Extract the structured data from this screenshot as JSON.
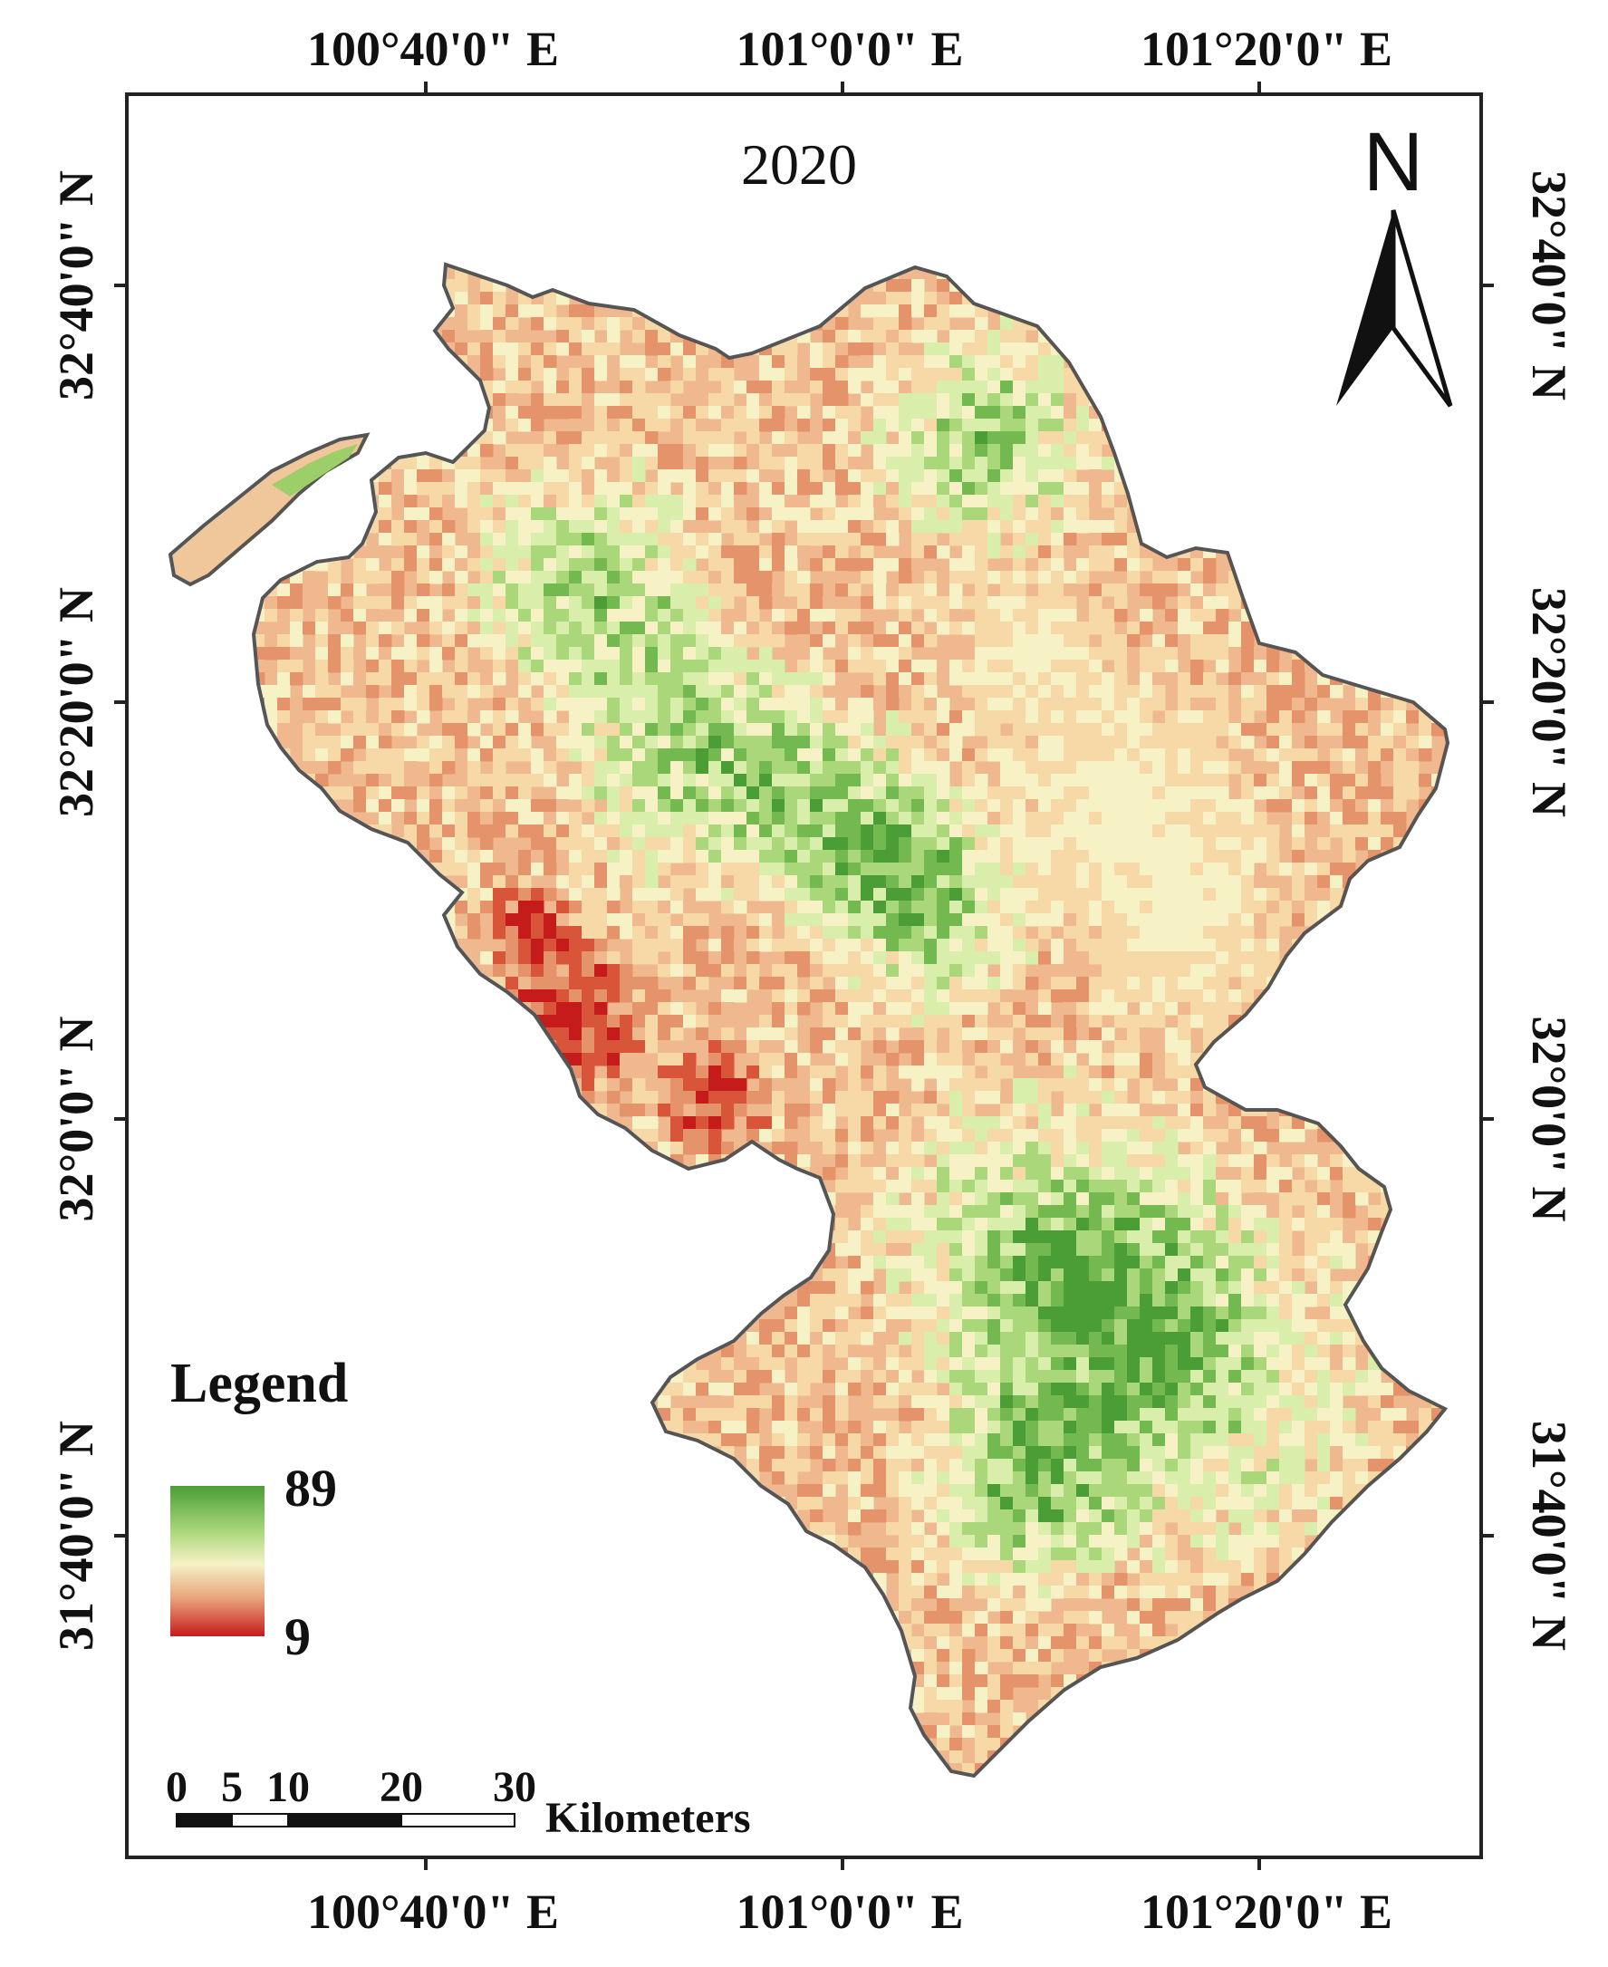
{
  "map": {
    "title": "2020",
    "longitude_labels": [
      "100°40'0\" E",
      "101°0'0\" E",
      "101°20'0\" E"
    ],
    "latitude_labels": [
      "32°40'0\" N",
      "32°20'0\" N",
      "32°0'0\" N",
      "31°40'0\" N"
    ],
    "north_arrow": {
      "label": "N",
      "icon": "north-arrow-icon"
    },
    "legend": {
      "title": "Legend",
      "max_label": "89",
      "min_label": "9",
      "max_value": 89,
      "min_value": 9,
      "colors": {
        "high": "#4a9e35",
        "mid_high": "#d9eeaa",
        "mid": "#f6e8b8",
        "mid_low": "#e4936a",
        "low": "#c61b1b"
      }
    },
    "scale_bar": {
      "ticks": [
        "0",
        "5",
        "10",
        "20",
        "30"
      ],
      "unit": "Kilometers"
    },
    "colors": {
      "frame": "#222222",
      "boundary": "#555555"
    }
  }
}
